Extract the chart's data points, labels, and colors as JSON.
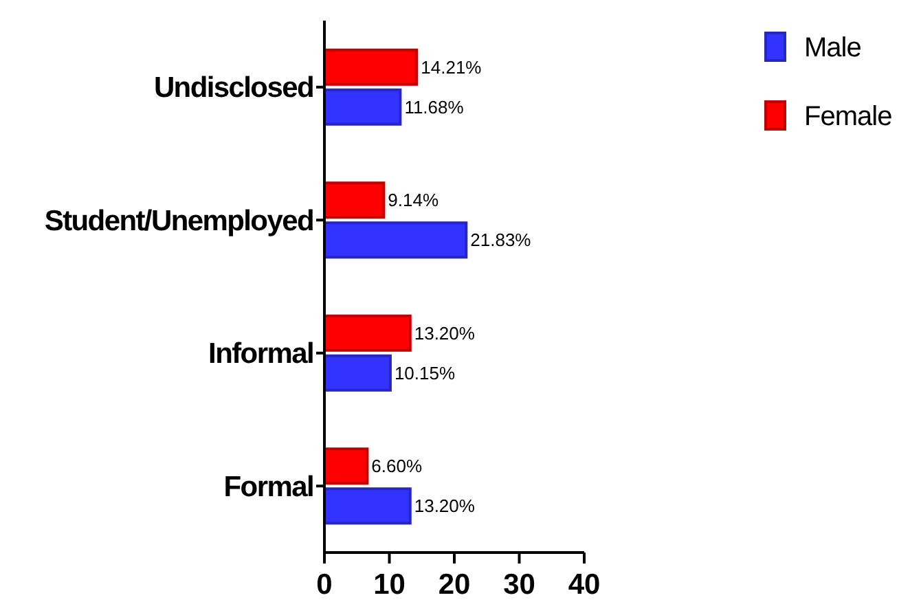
{
  "chart_data": {
    "type": "bar",
    "orientation": "horizontal",
    "categories": [
      "Undisclosed",
      "Student/Unemployed",
      "Informal",
      "Formal"
    ],
    "series": [
      {
        "name": "Male",
        "color": "#3333ff",
        "values": [
          11.68,
          21.83,
          10.15,
          13.2
        ],
        "value_labels": [
          "11.68%",
          "21.83%",
          "10.15%",
          "13.20%"
        ]
      },
      {
        "name": "Female",
        "color": "#ff0000",
        "values": [
          14.21,
          9.14,
          13.2,
          6.6
        ],
        "value_labels": [
          "14.21%",
          "9.14%",
          "13.20%",
          "6.60%"
        ]
      }
    ],
    "xlim": [
      0,
      40
    ],
    "xticks": [
      0,
      10,
      20,
      30,
      40
    ],
    "grid": false,
    "legend": "top right"
  }
}
